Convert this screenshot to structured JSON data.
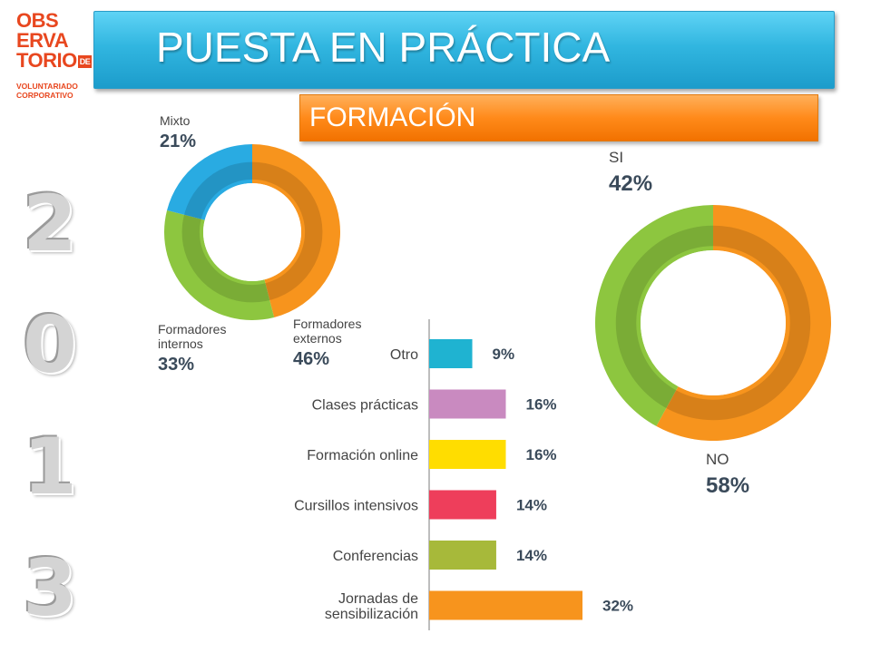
{
  "logo": {
    "lines": [
      "OBS",
      "ERVA",
      "TORIO"
    ],
    "de": "DE",
    "sub": [
      "VOLUNTARIADO",
      "CORPORATIVO"
    ],
    "color": "#e8471f"
  },
  "header": {
    "title": "PUESTA EN PRÁCTICA"
  },
  "subheader": {
    "title": "FORMACIÓN"
  },
  "year": [
    "2",
    "0",
    "1",
    "3"
  ],
  "chart_data": [
    {
      "type": "pie",
      "style": "donut",
      "slices": [
        {
          "label": "Formadores externos",
          "value": 46,
          "display": "46%",
          "color": "#f7941d"
        },
        {
          "label": "Formadores internos",
          "value": 33,
          "display": "33%",
          "color": "#8dc63f"
        },
        {
          "label": "Mixto",
          "value": 21,
          "display": "21%",
          "color": "#29abe2"
        }
      ],
      "label_lines": {
        "mixto": [
          "Mixto"
        ],
        "internos": [
          "Formadores",
          "internos"
        ],
        "externos": [
          "Formadores",
          "externos"
        ]
      }
    },
    {
      "type": "pie",
      "style": "donut",
      "slices": [
        {
          "label": "NO",
          "value": 58,
          "display": "58%",
          "color": "#f7941d"
        },
        {
          "label": "SI",
          "value": 42,
          "display": "42%",
          "color": "#8dc63f"
        }
      ]
    },
    {
      "type": "bar",
      "orientation": "horizontal",
      "categories": [
        "Otro",
        "Clases prácticas",
        "Formación online",
        "Cursillos intensivos",
        "Conferencias",
        "Jornadas de sensibilización"
      ],
      "category_lines": [
        [
          "Otro"
        ],
        [
          "Clases prácticas"
        ],
        [
          "Formación online"
        ],
        [
          "Cursillos intensivos"
        ],
        [
          "Conferencias"
        ],
        [
          "Jornadas de",
          "sensibilización"
        ]
      ],
      "values": [
        9,
        16,
        16,
        14,
        14,
        32
      ],
      "labels": [
        "9%",
        "16%",
        "16%",
        "14%",
        "14%",
        "32%"
      ],
      "colors": [
        "#1fb3d1",
        "#c98ac0",
        "#ffdd00",
        "#ee3e5b",
        "#a7b93a",
        "#f7941d"
      ]
    }
  ]
}
